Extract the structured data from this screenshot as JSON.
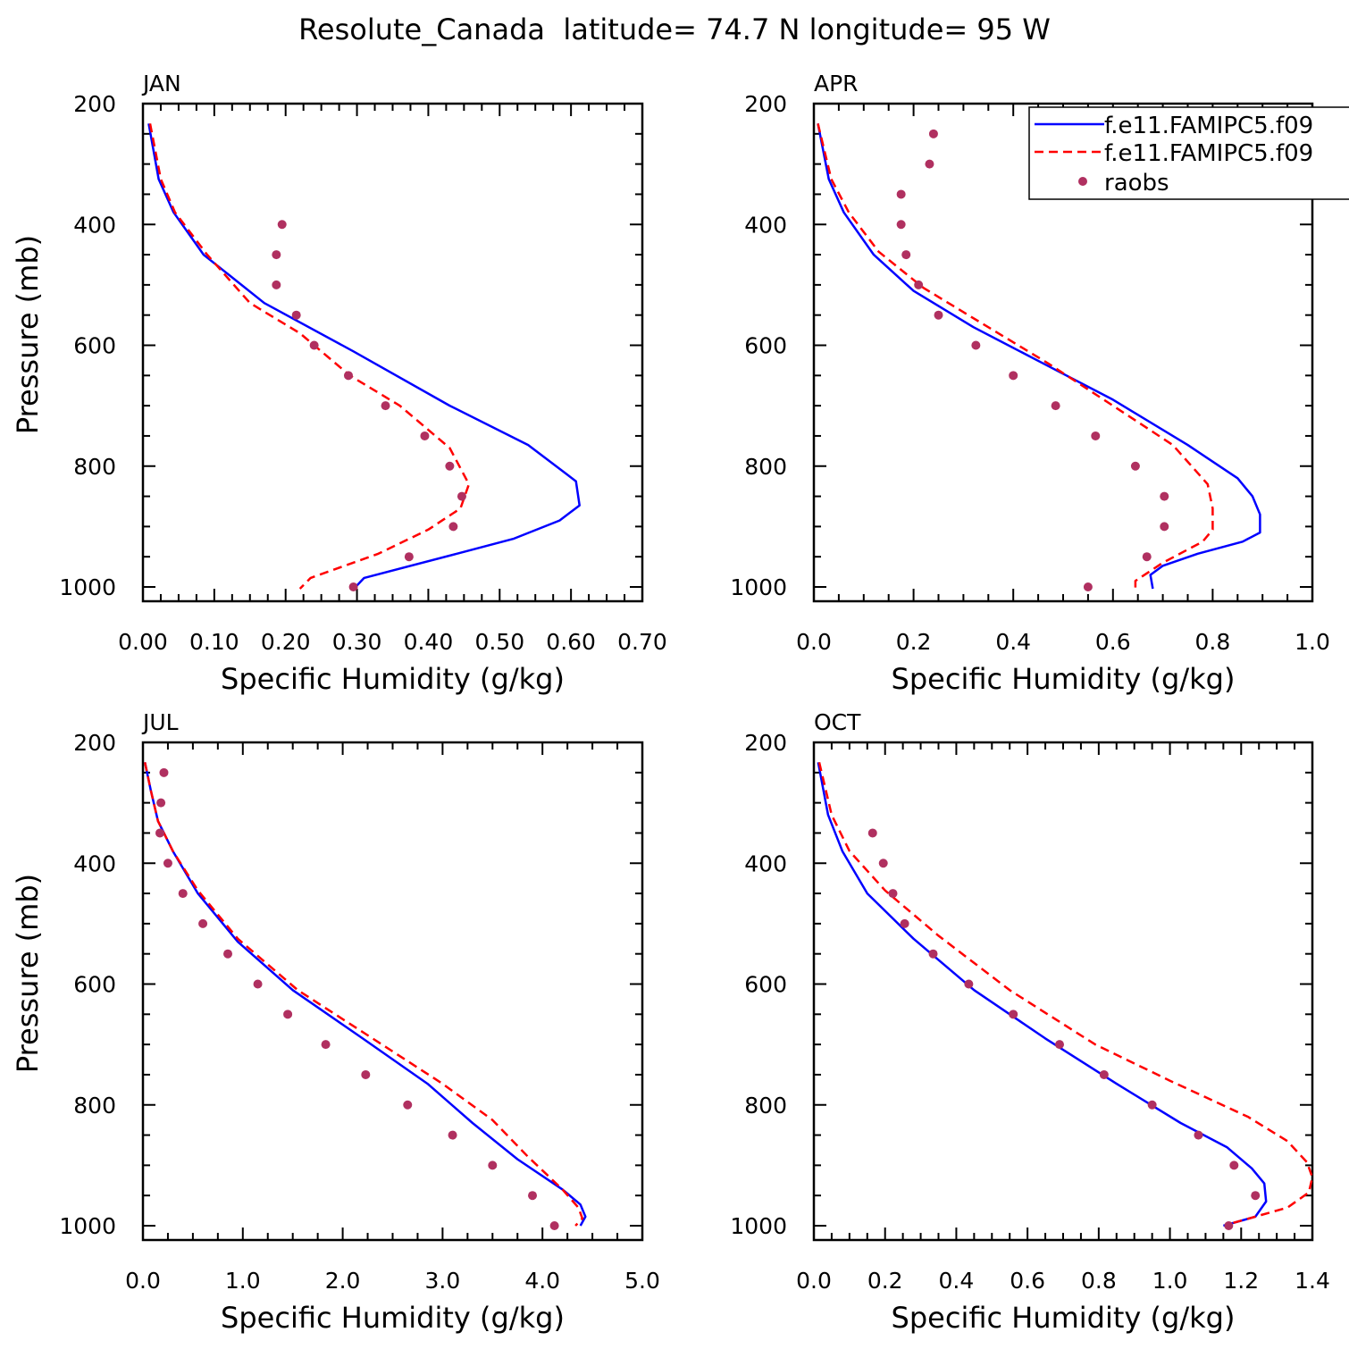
{
  "title": "Resolute_Canada  latitude= 74.7 N longitude= 95 W",
  "colors": {
    "model1": "#0000ff",
    "model2": "#ff0000",
    "raobs": "#b03060",
    "axis": "#000000"
  },
  "legend": {
    "entries": [
      {
        "label": "f.e11.FAMIPC5.f09",
        "style": "solid-blue-line"
      },
      {
        "label": "f.e11.FAMIPC5.f09",
        "style": "dashed-red-line"
      },
      {
        "label": "raobs",
        "style": "purple-dot"
      }
    ]
  },
  "chart_data": [
    {
      "type": "line",
      "panel": "JAN",
      "xlabel": "Specific Humidity (g/kg)",
      "ylabel": "Pressure (mb)",
      "xlim": [
        0,
        0.7
      ],
      "ylim": [
        200,
        1000
      ],
      "y_inverted": true,
      "xticks": [
        0,
        0.1,
        0.2,
        0.3,
        0.4,
        0.5,
        0.6,
        0.7
      ],
      "xtick_labels": [
        "0.00",
        "0.10",
        "0.20",
        "0.30",
        "0.40",
        "0.50",
        "0.60",
        "0.70"
      ],
      "yticks": [
        200,
        400,
        600,
        800,
        1000
      ],
      "ytick_labels": [
        "200",
        "400",
        "600",
        "800",
        "1000"
      ],
      "series": [
        {
          "name": "f.e11.FAMIPC5.f09",
          "style": "solid",
          "x": [
            0.008,
            0.022,
            0.043,
            0.085,
            0.17,
            0.295,
            0.43,
            0.54,
            0.607,
            0.612,
            0.584,
            0.52,
            0.44,
            0.31,
            0.298
          ],
          "y": [
            233,
            325,
            380,
            450,
            530,
            610,
            700,
            765,
            825,
            865,
            890,
            920,
            945,
            985,
            1000
          ]
        },
        {
          "name": "f.e11.FAMIPC5.f09",
          "style": "dashed",
          "x": [
            0.01,
            0.025,
            0.045,
            0.09,
            0.15,
            0.22,
            0.29,
            0.36,
            0.43,
            0.457,
            0.445,
            0.4,
            0.33,
            0.235,
            0.22
          ],
          "y": [
            233,
            325,
            380,
            450,
            530,
            580,
            650,
            700,
            770,
            830,
            870,
            905,
            945,
            985,
            1003
          ]
        },
        {
          "name": "raobs",
          "style": "dots",
          "x": [
            0.195,
            0.187,
            0.187,
            0.215,
            0.24,
            0.288,
            0.34,
            0.395,
            0.43,
            0.447,
            0.435,
            0.373,
            0.295
          ],
          "y": [
            400,
            450,
            500,
            550,
            600,
            650,
            700,
            750,
            800,
            850,
            900,
            950,
            1000
          ]
        }
      ]
    },
    {
      "type": "line",
      "panel": "APR",
      "xlabel": "Specific Humidity (g/kg)",
      "ylabel": "",
      "xlim": [
        0,
        1.0
      ],
      "ylim": [
        200,
        1000
      ],
      "y_inverted": true,
      "xticks": [
        0,
        0.2,
        0.4,
        0.6,
        0.8,
        1.0
      ],
      "xtick_labels": [
        "0.0",
        "0.2",
        "0.4",
        "0.6",
        "0.8",
        "1.0"
      ],
      "yticks": [
        200,
        400,
        600,
        800,
        1000
      ],
      "ytick_labels": [
        "200",
        "400",
        "600",
        "800",
        "1000"
      ],
      "series": [
        {
          "name": "f.e11.FAMIPC5.f09",
          "style": "solid",
          "x": [
            0.008,
            0.03,
            0.06,
            0.12,
            0.2,
            0.32,
            0.46,
            0.6,
            0.75,
            0.85,
            0.88,
            0.895,
            0.895,
            0.86,
            0.77,
            0.7,
            0.675,
            0.68
          ],
          "y": [
            233,
            325,
            380,
            450,
            510,
            570,
            630,
            690,
            765,
            820,
            850,
            880,
            910,
            925,
            945,
            965,
            980,
            1003
          ]
        },
        {
          "name": "f.e11.FAMIPC5.f09",
          "style": "dashed",
          "x": [
            0.008,
            0.035,
            0.07,
            0.13,
            0.22,
            0.33,
            0.47,
            0.6,
            0.72,
            0.79,
            0.8,
            0.8,
            0.78,
            0.7,
            0.645,
            0.645
          ],
          "y": [
            233,
            325,
            380,
            445,
            505,
            560,
            630,
            700,
            765,
            830,
            870,
            905,
            925,
            960,
            990,
            1008
          ]
        },
        {
          "name": "raobs",
          "style": "dots",
          "x": [
            0.24,
            0.232,
            0.175,
            0.175,
            0.185,
            0.21,
            0.25,
            0.325,
            0.4,
            0.485,
            0.565,
            0.645,
            0.703,
            0.703,
            0.668,
            0.55
          ],
          "y": [
            250,
            300,
            350,
            400,
            450,
            500,
            550,
            600,
            650,
            700,
            750,
            800,
            850,
            900,
            950,
            1000
          ]
        }
      ]
    },
    {
      "type": "line",
      "panel": "JUL",
      "xlabel": "Specific Humidity (g/kg)",
      "ylabel": "Pressure (mb)",
      "xlim": [
        0,
        5.0
      ],
      "ylim": [
        200,
        1000
      ],
      "y_inverted": true,
      "xticks": [
        0,
        1,
        2,
        3,
        4,
        5
      ],
      "xtick_labels": [
        "0.0",
        "1.0",
        "2.0",
        "3.0",
        "4.0",
        "5.0"
      ],
      "yticks": [
        200,
        400,
        600,
        800,
        1000
      ],
      "ytick_labels": [
        "200",
        "400",
        "600",
        "800",
        "1000"
      ],
      "series": [
        {
          "name": "f.e11.FAMIPC5.f09",
          "style": "solid",
          "x": [
            0.02,
            0.08,
            0.15,
            0.3,
            0.55,
            0.95,
            1.5,
            2.2,
            2.85,
            3.3,
            3.75,
            4.2,
            4.38,
            4.43,
            4.38
          ],
          "y": [
            233,
            280,
            330,
            380,
            450,
            530,
            610,
            690,
            765,
            830,
            890,
            940,
            965,
            985,
            1000
          ]
        },
        {
          "name": "f.e11.FAMIPC5.f09",
          "style": "dashed",
          "x": [
            0.02,
            0.08,
            0.15,
            0.3,
            0.55,
            0.95,
            1.55,
            2.3,
            3.0,
            3.5,
            3.85,
            4.2,
            4.36,
            4.4,
            4.33
          ],
          "y": [
            233,
            280,
            330,
            380,
            445,
            525,
            610,
            690,
            765,
            825,
            885,
            940,
            970,
            988,
            1000
          ]
        },
        {
          "name": "raobs",
          "style": "dots",
          "x": [
            0.21,
            0.18,
            0.17,
            0.25,
            0.4,
            0.6,
            0.85,
            1.15,
            1.45,
            1.83,
            2.23,
            2.65,
            3.1,
            3.5,
            3.9,
            4.12
          ],
          "y": [
            250,
            300,
            350,
            400,
            450,
            500,
            550,
            600,
            650,
            700,
            750,
            800,
            850,
            900,
            950,
            1000
          ]
        }
      ]
    },
    {
      "type": "line",
      "panel": "OCT",
      "xlabel": "Specific Humidity (g/kg)",
      "ylabel": "",
      "xlim": [
        0,
        1.4
      ],
      "ylim": [
        200,
        1000
      ],
      "y_inverted": true,
      "xticks": [
        0,
        0.2,
        0.4,
        0.6,
        0.8,
        1.0,
        1.2,
        1.4
      ],
      "xtick_labels": [
        "0.0",
        "0.2",
        "0.4",
        "0.6",
        "0.8",
        "1.0",
        "1.2",
        "1.4"
      ],
      "yticks": [
        200,
        400,
        600,
        800,
        1000
      ],
      "ytick_labels": [
        "200",
        "400",
        "600",
        "800",
        "1000"
      ],
      "series": [
        {
          "name": "f.e11.FAMIPC5.f09",
          "style": "solid",
          "x": [
            0.012,
            0.04,
            0.08,
            0.15,
            0.28,
            0.45,
            0.65,
            0.85,
            1.03,
            1.16,
            1.23,
            1.265,
            1.27,
            1.24,
            1.15
          ],
          "y": [
            233,
            320,
            380,
            450,
            525,
            610,
            690,
            765,
            830,
            870,
            905,
            930,
            960,
            985,
            1000
          ]
        },
        {
          "name": "f.e11.FAMIPC5.f09",
          "style": "dashed",
          "x": [
            0.015,
            0.05,
            0.1,
            0.2,
            0.35,
            0.55,
            0.79,
            1.0,
            1.22,
            1.33,
            1.385,
            1.4,
            1.39,
            1.33,
            1.18,
            1.16
          ],
          "y": [
            233,
            320,
            380,
            445,
            520,
            610,
            700,
            760,
            820,
            860,
            895,
            920,
            945,
            970,
            995,
            1003
          ]
        },
        {
          "name": "raobs",
          "style": "dots",
          "x": [
            0.165,
            0.195,
            0.222,
            0.255,
            0.335,
            0.435,
            0.56,
            0.69,
            0.815,
            0.95,
            1.08,
            1.18,
            1.24,
            1.165
          ],
          "y": [
            350,
            400,
            450,
            500,
            550,
            600,
            650,
            700,
            750,
            800,
            850,
            900,
            950,
            1000
          ]
        }
      ]
    }
  ]
}
